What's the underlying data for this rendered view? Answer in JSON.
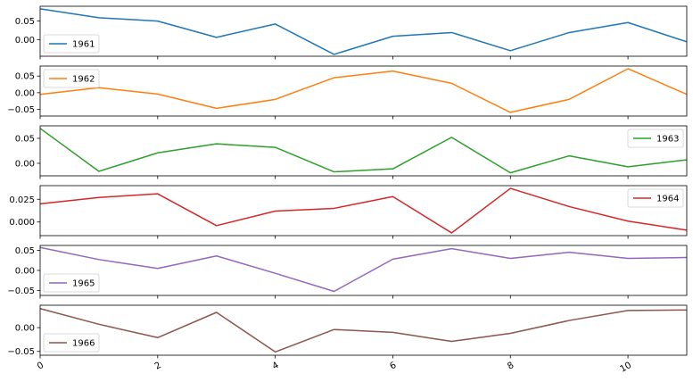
{
  "chart_data": {
    "type": "line",
    "layout": "stacked-subplots",
    "shared_x": true,
    "x": [
      0,
      1,
      2,
      3,
      4,
      5,
      6,
      7,
      8,
      9,
      10,
      11
    ],
    "xlim": [
      0,
      11
    ],
    "xticks": [
      0,
      2,
      4,
      6,
      8,
      10
    ],
    "xtick_labels": [
      "0",
      "2",
      "4",
      "6",
      "8",
      "10"
    ],
    "xtick_rotation": 30,
    "grid": false,
    "subplots": [
      {
        "series_name": "1961",
        "color": "#1f77b4",
        "values": [
          0.083,
          0.059,
          0.05,
          0.006,
          0.042,
          -0.04,
          0.009,
          0.019,
          -0.03,
          0.019,
          0.046,
          -0.006
        ],
        "ylim": [
          -0.045,
          0.09
        ],
        "yticks": [
          0.0,
          0.05
        ],
        "ytick_labels": [
          "0.00",
          "0.05"
        ],
        "legend_position": "lower-left"
      },
      {
        "series_name": "1962",
        "color": "#ff7f0e",
        "values": [
          -0.005,
          0.015,
          -0.004,
          -0.047,
          -0.02,
          0.045,
          0.065,
          0.028,
          -0.059,
          -0.02,
          0.072,
          -0.005
        ],
        "ylim": [
          -0.07,
          0.08
        ],
        "yticks": [
          -0.05,
          0.0,
          0.05
        ],
        "ytick_labels": [
          "−0.05",
          "0.00",
          "0.05"
        ],
        "legend_position": "upper-left"
      },
      {
        "series_name": "1963",
        "color": "#2ca02c",
        "values": [
          0.07,
          -0.016,
          0.021,
          0.039,
          0.032,
          -0.017,
          -0.011,
          0.052,
          -0.019,
          0.015,
          -0.007,
          0.007
        ],
        "ylim": [
          -0.025,
          0.075
        ],
        "yticks": [
          0.0,
          0.05
        ],
        "ytick_labels": [
          "0.00",
          "0.05"
        ],
        "legend_position": "upper-right"
      },
      {
        "series_name": "1964",
        "color": "#d62728",
        "values": [
          0.02,
          0.027,
          0.031,
          -0.004,
          0.012,
          0.015,
          0.028,
          -0.012,
          0.037,
          0.017,
          0.001,
          -0.009
        ],
        "ylim": [
          -0.015,
          0.04
        ],
        "yticks": [
          0.0,
          0.025
        ],
        "ytick_labels": [
          "0.000",
          "0.025"
        ],
        "legend_position": "upper-right"
      },
      {
        "series_name": "1965",
        "color": "#9467bd",
        "values": [
          0.057,
          0.027,
          0.005,
          0.036,
          -0.007,
          -0.052,
          0.028,
          0.054,
          0.03,
          0.045,
          0.03,
          0.032
        ],
        "ylim": [
          -0.062,
          0.062
        ],
        "yticks": [
          -0.05,
          0.0,
          0.05
        ],
        "ytick_labels": [
          "−0.05",
          "0.00",
          "0.05"
        ],
        "legend_position": "lower-left"
      },
      {
        "series_name": "1966",
        "color": "#8c564b",
        "values": [
          0.04,
          0.007,
          -0.021,
          0.032,
          -0.051,
          -0.004,
          -0.01,
          -0.029,
          -0.012,
          0.015,
          0.036,
          0.037
        ],
        "ylim": [
          -0.058,
          0.047
        ],
        "yticks": [
          -0.05,
          0.0
        ],
        "ytick_labels": [
          "−0.05",
          "0.00"
        ],
        "legend_position": "lower-left"
      }
    ]
  }
}
